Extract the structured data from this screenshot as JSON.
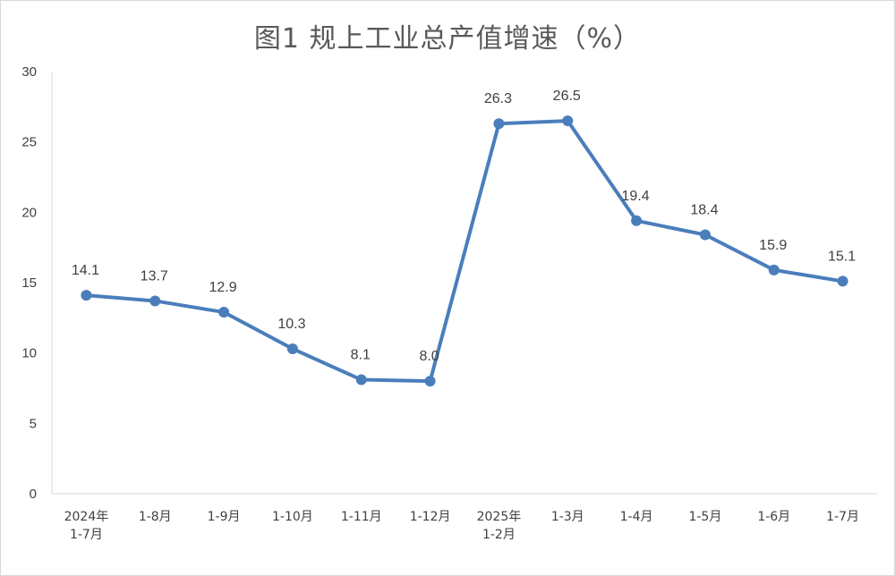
{
  "chart_data": {
    "type": "line",
    "title": "图1 规上工业总产值增速（%）",
    "xlabel": "",
    "ylabel": "",
    "ylim": [
      0,
      30
    ],
    "yticks": [
      "0",
      "5",
      "10",
      "15",
      "20",
      "25",
      "30"
    ],
    "grid": false,
    "legend": "none",
    "categories": [
      [
        "2024年",
        "1-7月"
      ],
      [
        "1-8月"
      ],
      [
        "1-9月"
      ],
      [
        "1-10月"
      ],
      [
        "1-11月"
      ],
      [
        "1-12月"
      ],
      [
        "2025年",
        "1-2月"
      ],
      [
        "1-3月"
      ],
      [
        "1-4月"
      ],
      [
        "1-5月"
      ],
      [
        "1-6月"
      ],
      [
        "1-7月"
      ]
    ],
    "series": [
      {
        "values": [
          14.1,
          13.7,
          12.9,
          10.3,
          8.1,
          8.0,
          26.3,
          26.5,
          19.4,
          18.4,
          15.9,
          15.1
        ],
        "labels": [
          "14.1",
          "13.7",
          "12.9",
          "10.3",
          "8.1",
          "8.0",
          "26.3",
          "26.5",
          "19.4",
          "18.4",
          "15.9",
          "15.1"
        ],
        "color": "#4a7ebb"
      }
    ]
  }
}
